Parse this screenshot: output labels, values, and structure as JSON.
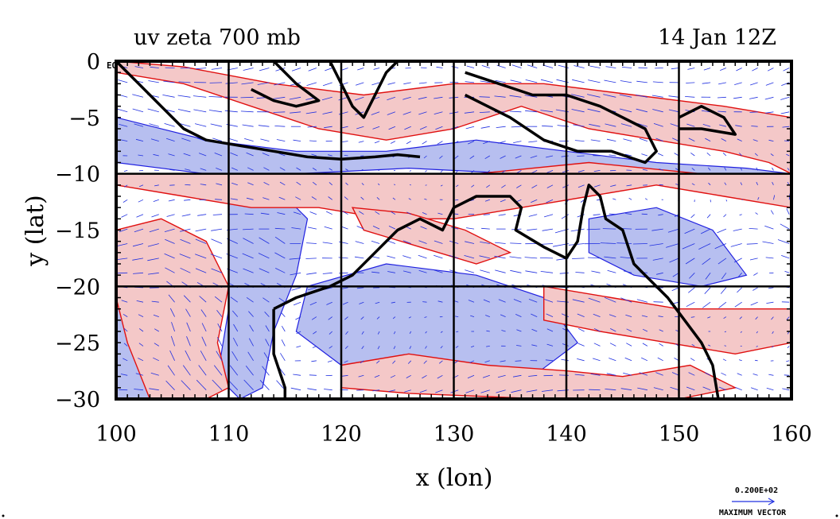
{
  "title_left": "uv zeta 700 mb",
  "title_right": "14 Jan 12Z",
  "eq_label": "EQ",
  "xlabel": "x (lon)",
  "ylabel": "y (lat)",
  "legend": {
    "magnitude": "0.200E+02",
    "label": "MAXIMUM VECTOR"
  },
  "colors": {
    "positive_fill": "#f4c8c8",
    "negative_fill": "#b7bff0",
    "positive_contour": "#e01010",
    "negative_contour": "#2020e0",
    "vector": "#2030e0",
    "coast": "#000000"
  },
  "chart_data": {
    "type": "heatmap",
    "xlim": [
      100,
      160
    ],
    "ylim": [
      -30,
      0
    ],
    "xticks": [
      100,
      110,
      120,
      130,
      140,
      150,
      160
    ],
    "yticks": [
      0,
      -5,
      -10,
      -15,
      -20,
      -25,
      -30
    ],
    "grid_lon": [
      110,
      120,
      130,
      140,
      150
    ],
    "grid_lat": [
      -10,
      -20
    ],
    "positive_regions": [
      [
        [
          100,
          -1
        ],
        [
          106,
          -2
        ],
        [
          112,
          -4
        ],
        [
          118,
          -6
        ],
        [
          124,
          -7
        ],
        [
          130,
          -6
        ],
        [
          136,
          -4
        ],
        [
          142,
          -6
        ],
        [
          148,
          -7
        ],
        [
          154,
          -8
        ],
        [
          158,
          -9
        ],
        [
          160,
          -10
        ],
        [
          160,
          -5
        ],
        [
          154,
          -4
        ],
        [
          146,
          -3
        ],
        [
          138,
          -2
        ],
        [
          130,
          -2
        ],
        [
          122,
          -3
        ],
        [
          114,
          -2
        ],
        [
          106,
          -0.5
        ],
        [
          100,
          0
        ]
      ],
      [
        [
          100,
          -11
        ],
        [
          106,
          -12
        ],
        [
          112,
          -13
        ],
        [
          118,
          -13
        ],
        [
          124,
          -14
        ],
        [
          130,
          -14
        ],
        [
          136,
          -13
        ],
        [
          142,
          -12
        ],
        [
          148,
          -11
        ],
        [
          154,
          -12
        ],
        [
          160,
          -13
        ],
        [
          160,
          -10
        ],
        [
          152,
          -10
        ],
        [
          142,
          -9
        ],
        [
          132,
          -10
        ],
        [
          122,
          -10
        ],
        [
          112,
          -10
        ],
        [
          104,
          -10
        ],
        [
          100,
          -10
        ]
      ],
      [
        [
          100,
          -15
        ],
        [
          104,
          -14
        ],
        [
          108,
          -16
        ],
        [
          110,
          -20
        ],
        [
          109,
          -25
        ],
        [
          110,
          -29
        ],
        [
          108,
          -30
        ],
        [
          103,
          -30
        ],
        [
          101,
          -25
        ],
        [
          100,
          -21
        ]
      ],
      [
        [
          121,
          -13
        ],
        [
          126,
          -13.5
        ],
        [
          131,
          -15
        ],
        [
          135,
          -17
        ],
        [
          132,
          -18
        ],
        [
          127,
          -16.5
        ],
        [
          122,
          -15
        ]
      ],
      [
        [
          138,
          -20
        ],
        [
          144,
          -21
        ],
        [
          150,
          -22
        ],
        [
          156,
          -22
        ],
        [
          160,
          -22
        ],
        [
          160,
          -25
        ],
        [
          155,
          -26
        ],
        [
          149,
          -25
        ],
        [
          143,
          -24
        ],
        [
          138,
          -23
        ]
      ],
      [
        [
          120,
          -27
        ],
        [
          126,
          -26
        ],
        [
          133,
          -27
        ],
        [
          140,
          -27.5
        ],
        [
          145,
          -28
        ],
        [
          151,
          -27
        ],
        [
          155,
          -29
        ],
        [
          150,
          -30
        ],
        [
          138,
          -30
        ],
        [
          126,
          -29.5
        ],
        [
          120,
          -29
        ]
      ]
    ],
    "negative_regions": [
      [
        [
          100,
          -5
        ],
        [
          108,
          -7
        ],
        [
          116,
          -8
        ],
        [
          124,
          -8
        ],
        [
          132,
          -7
        ],
        [
          140,
          -8
        ],
        [
          148,
          -9
        ],
        [
          156,
          -9.5
        ],
        [
          160,
          -10
        ],
        [
          160,
          -12
        ],
        [
          152,
          -11
        ],
        [
          144,
          -10
        ],
        [
          136,
          -10
        ],
        [
          126,
          -9.5
        ],
        [
          116,
          -10
        ],
        [
          108,
          -10
        ],
        [
          100,
          -9
        ]
      ],
      [
        [
          110,
          -11
        ],
        [
          114,
          -11
        ],
        [
          117,
          -14
        ],
        [
          116,
          -19
        ],
        [
          114,
          -24
        ],
        [
          113,
          -29
        ],
        [
          111,
          -30
        ],
        [
          109,
          -28
        ],
        [
          110,
          -22
        ],
        [
          110,
          -16
        ]
      ],
      [
        [
          117,
          -20
        ],
        [
          124,
          -18
        ],
        [
          132,
          -19
        ],
        [
          138,
          -21
        ],
        [
          141,
          -25
        ],
        [
          137,
          -28
        ],
        [
          128,
          -28
        ],
        [
          120,
          -27
        ],
        [
          116,
          -24
        ]
      ],
      [
        [
          142,
          -14
        ],
        [
          148,
          -13
        ],
        [
          153,
          -15
        ],
        [
          156,
          -19
        ],
        [
          152,
          -20
        ],
        [
          146,
          -19
        ],
        [
          142,
          -17
        ]
      ],
      [
        [
          100,
          -22
        ],
        [
          104,
          -22
        ],
        [
          106,
          -26
        ],
        [
          105,
          -30
        ],
        [
          100,
          -30
        ]
      ]
    ],
    "coastlines": [
      [
        [
          100,
          0
        ],
        [
          102,
          -2
        ],
        [
          104,
          -4
        ],
        [
          106,
          -6
        ],
        [
          108,
          -7
        ],
        [
          111,
          -7.5
        ],
        [
          114,
          -8
        ],
        [
          117,
          -8.5
        ],
        [
          120,
          -8.7
        ],
        [
          123,
          -8.5
        ],
        [
          125,
          -8.3
        ],
        [
          127,
          -8.5
        ]
      ],
      [
        [
          114,
          0
        ],
        [
          116,
          -2
        ],
        [
          118,
          -3.5
        ],
        [
          116,
          -4
        ],
        [
          114,
          -3.5
        ],
        [
          112,
          -2.5
        ]
      ],
      [
        [
          119,
          0
        ],
        [
          120,
          -2
        ],
        [
          121,
          -4
        ],
        [
          122,
          -5
        ],
        [
          123,
          -3
        ],
        [
          124,
          -1
        ],
        [
          125,
          0
        ]
      ],
      [
        [
          131,
          -1
        ],
        [
          134,
          -2
        ],
        [
          137,
          -3
        ],
        [
          140,
          -3
        ],
        [
          143,
          -4
        ],
        [
          145,
          -5
        ],
        [
          147,
          -6
        ],
        [
          148,
          -8
        ],
        [
          147,
          -9
        ],
        [
          144,
          -8
        ],
        [
          141,
          -8
        ],
        [
          138,
          -7
        ],
        [
          135,
          -5
        ],
        [
          133,
          -4
        ],
        [
          131,
          -3
        ]
      ],
      [
        [
          150,
          -5
        ],
        [
          152,
          -4
        ],
        [
          154,
          -5
        ],
        [
          155,
          -6.5
        ],
        [
          152,
          -6
        ],
        [
          150,
          -6
        ]
      ],
      [
        [
          114,
          -22
        ],
        [
          114,
          -26
        ],
        [
          115,
          -29
        ],
        [
          115,
          -30
        ]
      ],
      [
        [
          114,
          -22
        ],
        [
          116,
          -21
        ],
        [
          119,
          -20
        ],
        [
          121,
          -19
        ],
        [
          123,
          -17
        ],
        [
          125,
          -15
        ],
        [
          127,
          -14
        ],
        [
          129,
          -15
        ],
        [
          130,
          -13
        ],
        [
          132,
          -12
        ],
        [
          135,
          -12
        ],
        [
          136,
          -13
        ],
        [
          135.5,
          -15
        ],
        [
          138,
          -16.5
        ],
        [
          140,
          -17.5
        ],
        [
          141,
          -16
        ],
        [
          141.5,
          -13
        ],
        [
          142,
          -11
        ],
        [
          143,
          -12
        ],
        [
          143.5,
          -14
        ],
        [
          145,
          -15
        ],
        [
          146,
          -18
        ],
        [
          147,
          -19
        ],
        [
          149,
          -21
        ],
        [
          150.5,
          -23
        ],
        [
          152,
          -25
        ],
        [
          153,
          -27
        ],
        [
          153.5,
          -30
        ]
      ]
    ],
    "legend_vector_magnitude": 20
  }
}
